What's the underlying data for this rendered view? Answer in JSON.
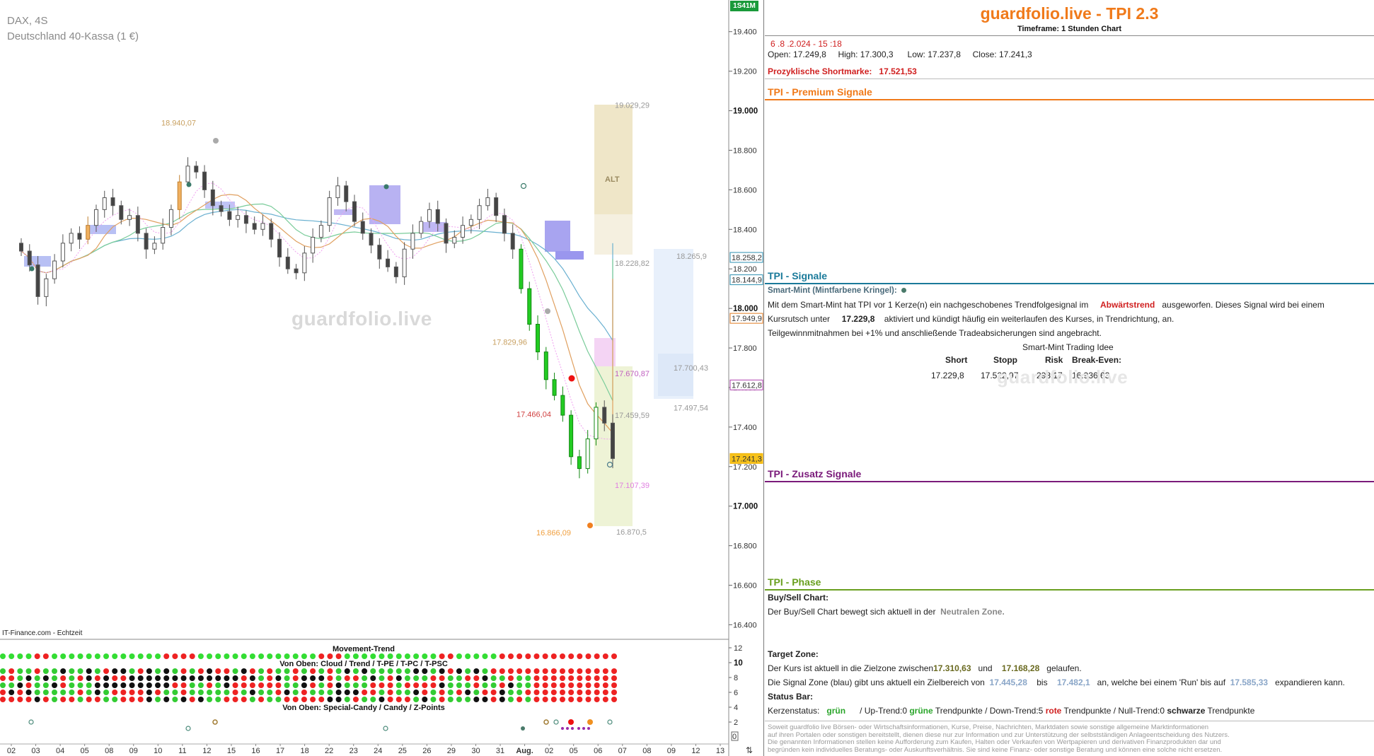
{
  "chart": {
    "symbol": "DAX, 4S",
    "name": "Deutschland 40-Kassa (1 €)",
    "watermark": "guardfolio.live",
    "source": "IT-Finance.com - Echtzeit",
    "time_badge": "1S41M",
    "alt_label": "ALT",
    "bottom_value": "0"
  },
  "chart_data": {
    "type": "candlestick",
    "y_axis_ticks": [
      "19.400",
      "19.200",
      "19.000",
      "18.800",
      "18.600",
      "18.400",
      "18.200",
      "18.000",
      "17.800",
      "17.600",
      "17.400",
      "17.200",
      "17.000",
      "16.800",
      "16.600",
      "16.400"
    ],
    "y_axis_bold": [
      "19.000",
      "18.000",
      "17.000"
    ],
    "ylim": [
      16330,
      19560
    ],
    "x_labels": [
      "02",
      "03",
      "04",
      "05",
      "08",
      "09",
      "10",
      "11",
      "12",
      "15",
      "16",
      "17",
      "18",
      "22",
      "23",
      "24",
      "25",
      "26",
      "29",
      "30",
      "31",
      "Aug.",
      "02",
      "05",
      "06",
      "07",
      "08",
      "09",
      "12",
      "13"
    ],
    "price_tags": [
      {
        "label": "18.258,2",
        "value": 18258,
        "color": "#2b8fb0"
      },
      {
        "label": "18.144,9",
        "value": 18145,
        "color": "#2b8fb0"
      },
      {
        "label": "17.949,9",
        "value": 17950,
        "color": "#e07a20"
      },
      {
        "label": "17.612,8",
        "value": 17613,
        "color": "#b040b0"
      },
      {
        "label": "17.241,3",
        "value": 17241,
        "color": "#f0b000"
      }
    ],
    "annotations": [
      {
        "text": "18.940,07",
        "value": 18940,
        "color": "#c8a060"
      },
      {
        "text": "19.029,29",
        "value": 19029,
        "color": "#999999"
      },
      {
        "text": "18.228,82",
        "value": 18229,
        "color": "#999999"
      },
      {
        "text": "18.265,9",
        "value": 18266,
        "color": "#999999"
      },
      {
        "text": "17.829,96",
        "value": 17830,
        "color": "#c8a060"
      },
      {
        "text": "17.700,43",
        "value": 17700,
        "color": "#999999"
      },
      {
        "text": "17.670,87",
        "value": 17671,
        "color": "#c060c0"
      },
      {
        "text": "17.497,54",
        "value": 17498,
        "color": "#999999"
      },
      {
        "text": "17.466,04",
        "value": 17466,
        "color": "#d04040"
      },
      {
        "text": "17.459,59",
        "value": 17460,
        "color": "#999999"
      },
      {
        "text": "17.107,39",
        "value": 17107,
        "color": "#e080e0"
      },
      {
        "text": "16.866,09",
        "value": 16866,
        "color": "#f0a040"
      },
      {
        "text": "16.870,5",
        "value": 16870,
        "color": "#999999"
      }
    ],
    "closes": [
      18290,
      18220,
      18060,
      18150,
      18240,
      18330,
      18380,
      18350,
      18420,
      18500,
      18560,
      18520,
      18450,
      18470,
      18380,
      18300,
      18330,
      18410,
      18500,
      18640,
      18720,
      18690,
      18600,
      18520,
      18490,
      18450,
      18470,
      18430,
      18400,
      18430,
      18350,
      18260,
      18200,
      18180,
      18280,
      18360,
      18420,
      18560,
      18620,
      18540,
      18440,
      18380,
      18320,
      18250,
      18210,
      18160,
      18300,
      18380,
      18440,
      18500,
      18430,
      18330,
      18360,
      18420,
      18450,
      18520,
      18560,
      18470,
      18380,
      18300,
      18100,
      17920,
      17780,
      17640,
      17560,
      17460,
      17250,
      17190,
      17340,
      17500,
      17420,
      17241
    ],
    "movement_trend": {
      "title": "Movement-Trend",
      "subtitle": "Von Oben: Cloud / Trend / T-PE / T-PC / T-PSC",
      "bottom_title": "Von Oben: Special-Candy / Candy / Z-Points",
      "y_ticks": [
        "12",
        "10",
        "8",
        "6",
        "4",
        "2"
      ]
    }
  },
  "panel": {
    "brand": "guardfolio.live - TPI 2.3",
    "timeframe": "Timeframe: 1 Stunden Chart",
    "date": "6 .8 .2.024  -  15 :18",
    "ohlc": {
      "open_label": "Open:",
      "open": "17.249,8",
      "high_label": "High:",
      "high": "17.300,3",
      "low_label": "Low:",
      "low": "17.237,8",
      "close_label": "Close:",
      "close": "17.241,3"
    },
    "short_label": "Prozyklische Shortmarke:",
    "short_value": "17.521,53",
    "premium_title": "TPI - Premium Signale",
    "signals_title": "TPI - Signale",
    "smart_mint_title": "Smart-Mint (Mintfarbene Kringel):",
    "sm_l1_a": "Mit dem Smart-Mint hat TPI vor 1  Kerze(n) ein nachgeschobenes Trendfolgesignal im",
    "sm_l1_b": "Abwärtstrend",
    "sm_l1_c": "ausgeworfen. Dieses Signal wird bei einem",
    "sm_l2_a": "Kursrutsch unter",
    "sm_l2_b": "17.229,8",
    "sm_l2_c": "aktiviert und kündigt häufig ein weiterlaufen des Kurses, in Trendrichtung, an.",
    "sm_l3": "Teilgewinnmitnahmen bei +1% und anschließende Tradeabsicherungen sind angebracht.",
    "idea_title": "Smart-Mint Trading Idee",
    "idea_headers": [
      "Short",
      "Stopp",
      "Risk",
      "Break-Even:"
    ],
    "idea_values": [
      "17.229,8",
      "17.522,97",
      "293,17",
      "16.936,63"
    ],
    "zusatz_title": "TPI - Zusatz Signale",
    "phase_title": "TPI - Phase",
    "buysell_title": "Buy/Sell Chart:",
    "buysell_a": "Der Buy/Sell Chart bewegt sich aktuell in der",
    "buysell_b": "Neutralen Zone.",
    "target_title": "Target Zone:",
    "target_a": "Der Kurs ist aktuell in die Zielzone zwischen",
    "target_v1": "17.310,63",
    "target_b": "und",
    "target_v2": "17.168,28",
    "target_c": "gelaufen.",
    "signal_a": "Die Signal Zone (blau) gibt uns aktuell ein Zielbereich von",
    "signal_v1": "17.445,28",
    "signal_b": "bis",
    "signal_v2": "17.482,1",
    "signal_c": "an, welche bei einem 'Run' bis auf",
    "signal_v3": "17.585,33",
    "signal_d": "expandieren kann.",
    "status_title": "Status Bar:",
    "status_a": "Kerzenstatus:",
    "status_green": "grün",
    "status_b": "/ Up-Trend:0",
    "status_c": "grüne",
    "status_d": "Trendpunkte  / Down-Trend:5",
    "status_e": "rote",
    "status_f": "Trendpunkte  / Null-Trend:0",
    "status_g": "schwarze",
    "status_h": "Trendpunkte",
    "disclaimer": [
      "Soweit guardfolio live Börsen- oder Wirtschaftsinformationen, Kurse, Preise, Nachrichten, Marktdaten sowie sonstige allgemeine Marktinformationen",
      "auf ihren Portalen oder sonstigen bereitstellt, dienen diese nur zur Information und zur Unterstützung der selbstständigen Anlageentscheidung des Nutzers.",
      "Die genannten Informationen stellen keine Aufforderung zum Kaufen, Halten oder Verkaufen von Wertpapieren und derivativen Finanzprodukten dar und",
      "begründen kein individuelles Beratungs- oder Auskunftsverhältnis. Sie sind keine Finanz- oder sonstige Beratung und können eine solche nicht ersetzen."
    ],
    "colors": {
      "brand": "#f07a1a",
      "premium": "#f07a1a",
      "signals": "#1a7a9a",
      "zusatz": "#7a1a7a",
      "phase": "#6aa020"
    }
  }
}
